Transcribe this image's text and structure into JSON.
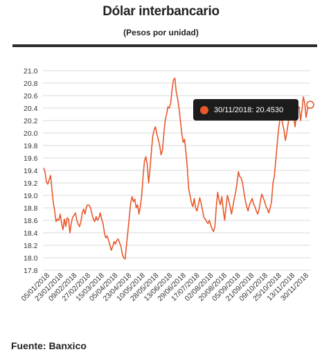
{
  "title": "Dólar interbancario",
  "subtitle": "(Pesos por unidad)",
  "source": "Fuente: Banxico",
  "tooltip": {
    "text": "30/11/2018: 20.4530"
  },
  "colors": {
    "line": "#e8572a",
    "grid": "#d9d9d9",
    "tooltip_bg": "#1c1c1c"
  },
  "chart_data": {
    "type": "line",
    "ylim": [
      17.8,
      21.0
    ],
    "yticks": [
      "21.0",
      "20.8",
      "20.6",
      "20.4",
      "20.2",
      "20.0",
      "19.8",
      "19.6",
      "19.4",
      "19.2",
      "19.0",
      "18.8",
      "18.6",
      "18.4",
      "18.2",
      "18.0",
      "17.8"
    ],
    "xticks": [
      "05/01/2018",
      "23/01/2018",
      "09/02/2018",
      "27/02/2018",
      "15/03/2018",
      "05/04/2018",
      "23/04/2018",
      "10/05/2018",
      "28/05/2018",
      "13/06/2018",
      "29/06/2018",
      "17/07/2018",
      "02/08/2018",
      "20/08/2018",
      "05/09/2018",
      "21/09/2018",
      "09/10/2018",
      "25/10/2018",
      "13/11/2018",
      "30/11/2018"
    ],
    "grid": true,
    "series": [
      {
        "values": [
          19.44,
          19.38,
          19.22,
          19.18,
          19.25,
          19.32,
          19.1,
          18.88,
          18.75,
          18.58,
          18.62,
          18.6,
          18.7,
          18.55,
          18.45,
          18.62,
          18.5,
          18.64,
          18.62,
          18.4,
          18.55,
          18.65,
          18.68,
          18.72,
          18.6,
          18.54,
          18.5,
          18.58,
          18.72,
          18.78,
          18.7,
          18.82,
          18.85,
          18.84,
          18.8,
          18.7,
          18.62,
          18.58,
          18.66,
          18.6,
          18.64,
          18.72,
          18.62,
          18.55,
          18.4,
          18.32,
          18.35,
          18.28,
          18.2,
          18.12,
          18.18,
          18.26,
          18.22,
          18.28,
          18.3,
          18.24,
          18.18,
          18.05,
          18.0,
          17.98,
          18.2,
          18.42,
          18.65,
          18.88,
          18.98,
          18.9,
          18.94,
          18.8,
          18.85,
          18.7,
          18.82,
          19.0,
          19.3,
          19.55,
          19.62,
          19.5,
          19.2,
          19.42,
          19.7,
          19.95,
          20.05,
          20.1,
          19.98,
          19.9,
          19.8,
          19.65,
          19.72,
          19.98,
          20.2,
          20.3,
          20.42,
          20.4,
          20.48,
          20.7,
          20.85,
          20.88,
          20.66,
          20.55,
          20.4,
          20.2,
          20.0,
          19.85,
          19.9,
          19.7,
          19.45,
          19.1,
          19.0,
          18.88,
          18.82,
          18.95,
          18.8,
          18.75,
          18.85,
          18.96,
          18.88,
          18.76,
          18.65,
          18.62,
          18.58,
          18.55,
          18.6,
          18.52,
          18.46,
          18.42,
          18.5,
          18.82,
          19.05,
          18.92,
          18.85,
          18.98,
          18.78,
          18.6,
          18.8,
          19.0,
          18.92,
          18.82,
          18.7,
          18.82,
          18.95,
          19.05,
          19.2,
          19.38,
          19.3,
          19.28,
          19.2,
          19.05,
          18.92,
          18.82,
          18.75,
          18.85,
          18.9,
          18.95,
          18.86,
          18.82,
          18.75,
          18.7,
          18.78,
          18.92,
          19.02,
          18.96,
          18.9,
          18.82,
          18.78,
          18.72,
          18.8,
          18.9,
          19.2,
          19.3,
          19.55,
          19.8,
          20.05,
          20.2,
          20.3,
          20.15,
          20.05,
          19.88,
          20.0,
          20.15,
          20.3,
          20.45,
          20.38,
          20.25,
          20.1,
          20.28,
          20.4,
          20.42,
          20.2,
          20.36,
          20.58,
          20.48,
          20.25,
          20.38,
          20.45,
          20.453
        ]
      }
    ]
  }
}
